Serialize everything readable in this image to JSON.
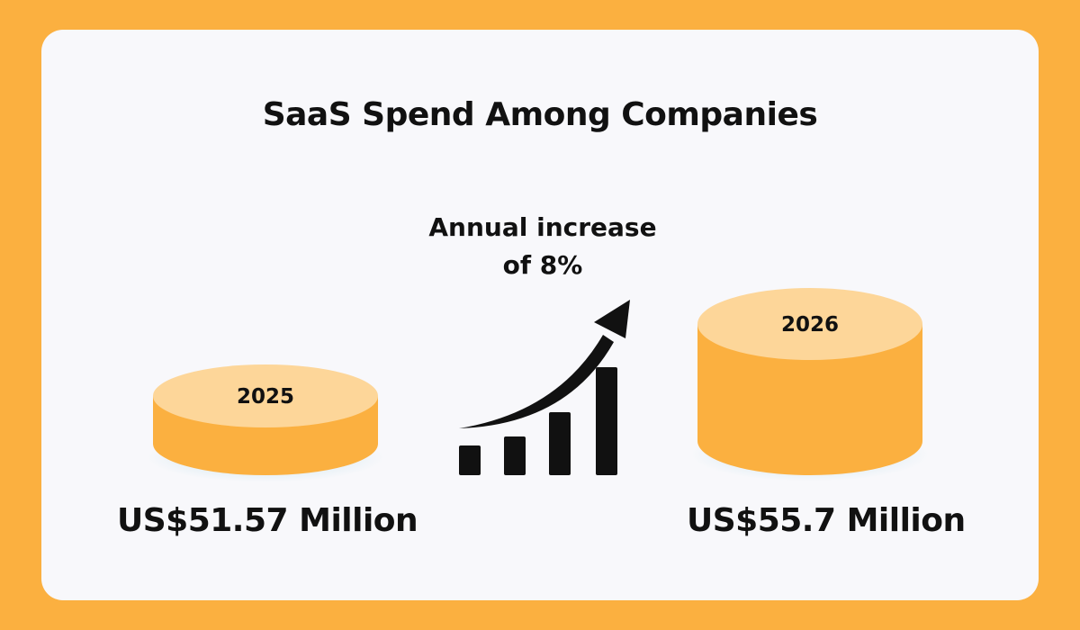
{
  "title": "SaaS Spend Among Companies",
  "annual_increase": {
    "line1": "Annual increase",
    "line2": "of 8%"
  },
  "items": [
    {
      "year": "2025",
      "amount": "US$51.57 Million"
    },
    {
      "year": "2026",
      "amount": "US$55.7 Million"
    }
  ],
  "colors": {
    "background": "#FBB040",
    "card": "#F8F8FB",
    "cylinder_top": "#FDD699",
    "cylinder_side": "#FBB040",
    "text": "#111111"
  },
  "icons": [
    "growth-chart-icon"
  ]
}
